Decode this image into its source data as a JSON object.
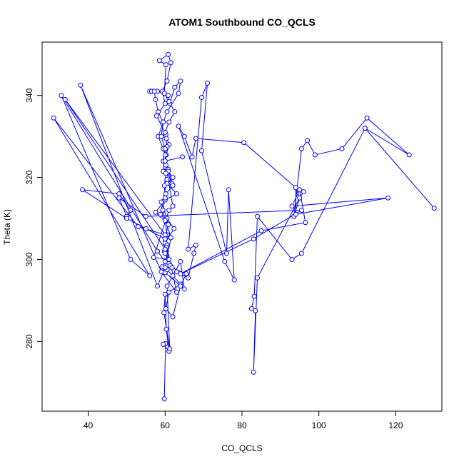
{
  "chart_data": {
    "type": "line",
    "title": "ATOM1 Southbound CO_QCLS",
    "xlabel": "CO_QCLS",
    "ylabel": "Theta (K)",
    "xlim": [
      28,
      132
    ],
    "ylim": [
      263,
      353
    ],
    "x_ticks": [
      40,
      60,
      80,
      100,
      120
    ],
    "y_ticks": [
      280,
      300,
      320,
      340
    ],
    "grid": false,
    "legend": "none",
    "series": [
      {
        "color": "#0000ff",
        "marker": "open-circle",
        "line_style": "solid",
        "x": [
          59.8,
          60.1,
          59.5,
          61.0,
          60.3,
          60.0,
          59.7,
          61.2,
          60.5,
          62.0,
          64.0,
          65.0,
          60.0,
          59.2,
          60.4,
          61.5,
          60.2,
          58.8,
          60.5,
          61.8,
          60.1,
          59.5,
          60.3,
          61.0,
          60.2,
          57.8,
          60.0,
          59.3,
          60.5,
          61.5,
          60.8,
          58.5,
          60.2,
          59.8,
          61.2,
          62.5,
          64.0,
          63.5,
          60.5,
          58.2,
          59.5,
          60.8,
          62.0,
          60.2,
          59.0,
          60.5,
          62.3,
          60.0,
          59.8,
          61.0,
          61.3,
          60.5,
          64.0,
          61.0,
          60.2,
          62.0,
          64.0,
          65.5,
          61.8,
          60.0,
          60.5,
          60.2,
          60.8,
          57.5,
          60.0,
          63.0,
          60.5,
          62.0,
          60.8,
          60.2,
          60.0,
          60.5,
          60.3,
          60.0,
          61.0,
          62.5,
          61.0,
          60.8,
          58.0,
          56.0,
          56.5,
          57.2,
          57.5,
          58.2,
          59.5,
          59.0,
          60.0,
          59.5,
          60.2,
          59.8,
          60.0,
          59.4,
          60.0,
          60.5,
          60.3,
          61.0,
          63.0,
          66.0,
          67.5,
          68.0,
          66.0,
          69.5,
          71.0,
          69.5,
          76.0,
          76.5,
          78.0,
          75.5,
          63.5,
          65.0,
          67.0,
          68.0,
          80.5,
          94.0,
          96.0,
          95.0,
          93.5,
          95.5,
          97.0,
          99.0,
          106.0,
          112.5,
          123.5,
          112.0,
          130.0,
          112.0,
          95.5,
          93.0,
          84.0,
          83.2,
          82.5,
          83.5,
          83.0,
          84.0,
          95.0,
          94.0,
          94.0,
          118.0,
          93.0,
          95.0,
          96.5,
          85.0,
          64.0,
          83.0,
          95.5,
          55.0,
          48.0,
          50.0,
          51.0,
          48.0,
          38.5,
          50.0,
          55.0,
          60.0,
          60.0,
          34.0,
          60.0,
          53.0,
          31.0,
          56.0,
          51.0,
          33.0,
          58.0,
          60.0,
          60.0,
          58.0,
          38.0,
          59.0,
          63.0,
          60.0,
          61.0,
          57.0,
          61.0,
          62.0,
          60.0,
          64.5
        ],
        "y": [
          266.0,
          279.5,
          279.3,
          277.6,
          283.0,
          291.5,
          287.0,
          278.2,
          293.5,
          296.0,
          299.5,
          292.8,
          296.8,
          298.2,
          299.8,
          305.3,
          309.5,
          311.0,
          319.5,
          318.5,
          322.5,
          321.5,
          325.5,
          328.0,
          330.5,
          335.0,
          338.0,
          341.0,
          343.5,
          348.0,
          350.0,
          348.5,
          347.5,
          340.5,
          338.0,
          342.0,
          343.5,
          340.5,
          336.0,
          330.0,
          327.0,
          322.0,
          318.0,
          316.0,
          314.0,
          310.0,
          307.5,
          304.0,
          302.0,
          299.0,
          298.5,
          297.5,
          294.0,
          292.0,
          288.0,
          286.0,
          293.5,
          296.5,
          298.0,
          301.5,
          303.5,
          306.0,
          308.5,
          311.5,
          314.5,
          316.0,
          318.5,
          320.0,
          321.5,
          323.0,
          325.5,
          327.5,
          329.5,
          331.0,
          333.5,
          336.0,
          338.5,
          340.0,
          341.0,
          341.0,
          341.0,
          341.0,
          339.0,
          336.0,
          333.5,
          330.0,
          327.0,
          324.0,
          321.0,
          318.0,
          315.0,
          312.0,
          309.5,
          306.0,
          303.0,
          300.0,
          297.0,
          295.5,
          301.5,
          303.5,
          302.5,
          339.5,
          343.0,
          326.5,
          301.5,
          317.0,
          295.0,
          299.5,
          332.5,
          330.0,
          325.0,
          329.5,
          328.5,
          317.5,
          316.5,
          315.0,
          310.5,
          327.0,
          329.0,
          325.5,
          327.0,
          334.5,
          325.5,
          332.0,
          312.5,
          332.0,
          301.5,
          300.0,
          310.5,
          291.0,
          288.0,
          287.5,
          272.5,
          295.5,
          315.0,
          317.5,
          311.0,
          315.0,
          313.0,
          317.0,
          309.0,
          307.0,
          296.5,
          305.0,
          312.0,
          310.5,
          315.0,
          310.5,
          312.0,
          316.0,
          317.0,
          310.0,
          307.5,
          305.0,
          302.5,
          339.0,
          306.0,
          308.0,
          334.5,
          296.0,
          300.0,
          340.0,
          302.0,
          299.5,
          298.0,
          293.5,
          342.5,
          297.0,
          292.0,
          305.0,
          300.0,
          300.5,
          312.0,
          313.0,
          324.0,
          325.0
        ]
      }
    ]
  }
}
